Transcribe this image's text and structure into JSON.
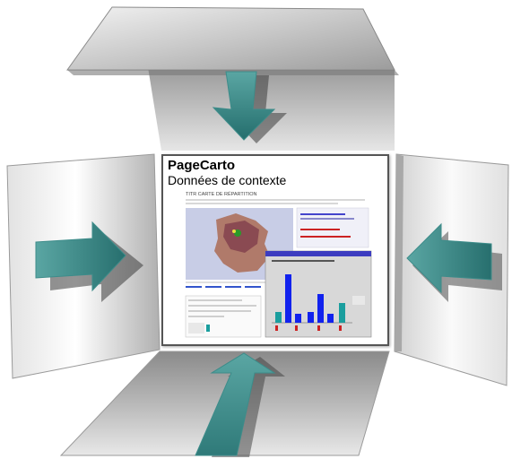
{
  "card": {
    "title": "PageCarto",
    "subtitle": "Données de contexte"
  },
  "thumbnail": {
    "header_text": "TITR  CARTE DE RÉPARTITION"
  },
  "colors": {
    "arrow_fill": "#2f7a79",
    "arrow_edge": "#6fb8b5",
    "panel_light": "#f4f4f4",
    "panel_dark": "#9a9a9a",
    "card_border": "#555555",
    "bar_blue": "#1122ee",
    "bar_teal": "#1a9e9e"
  }
}
